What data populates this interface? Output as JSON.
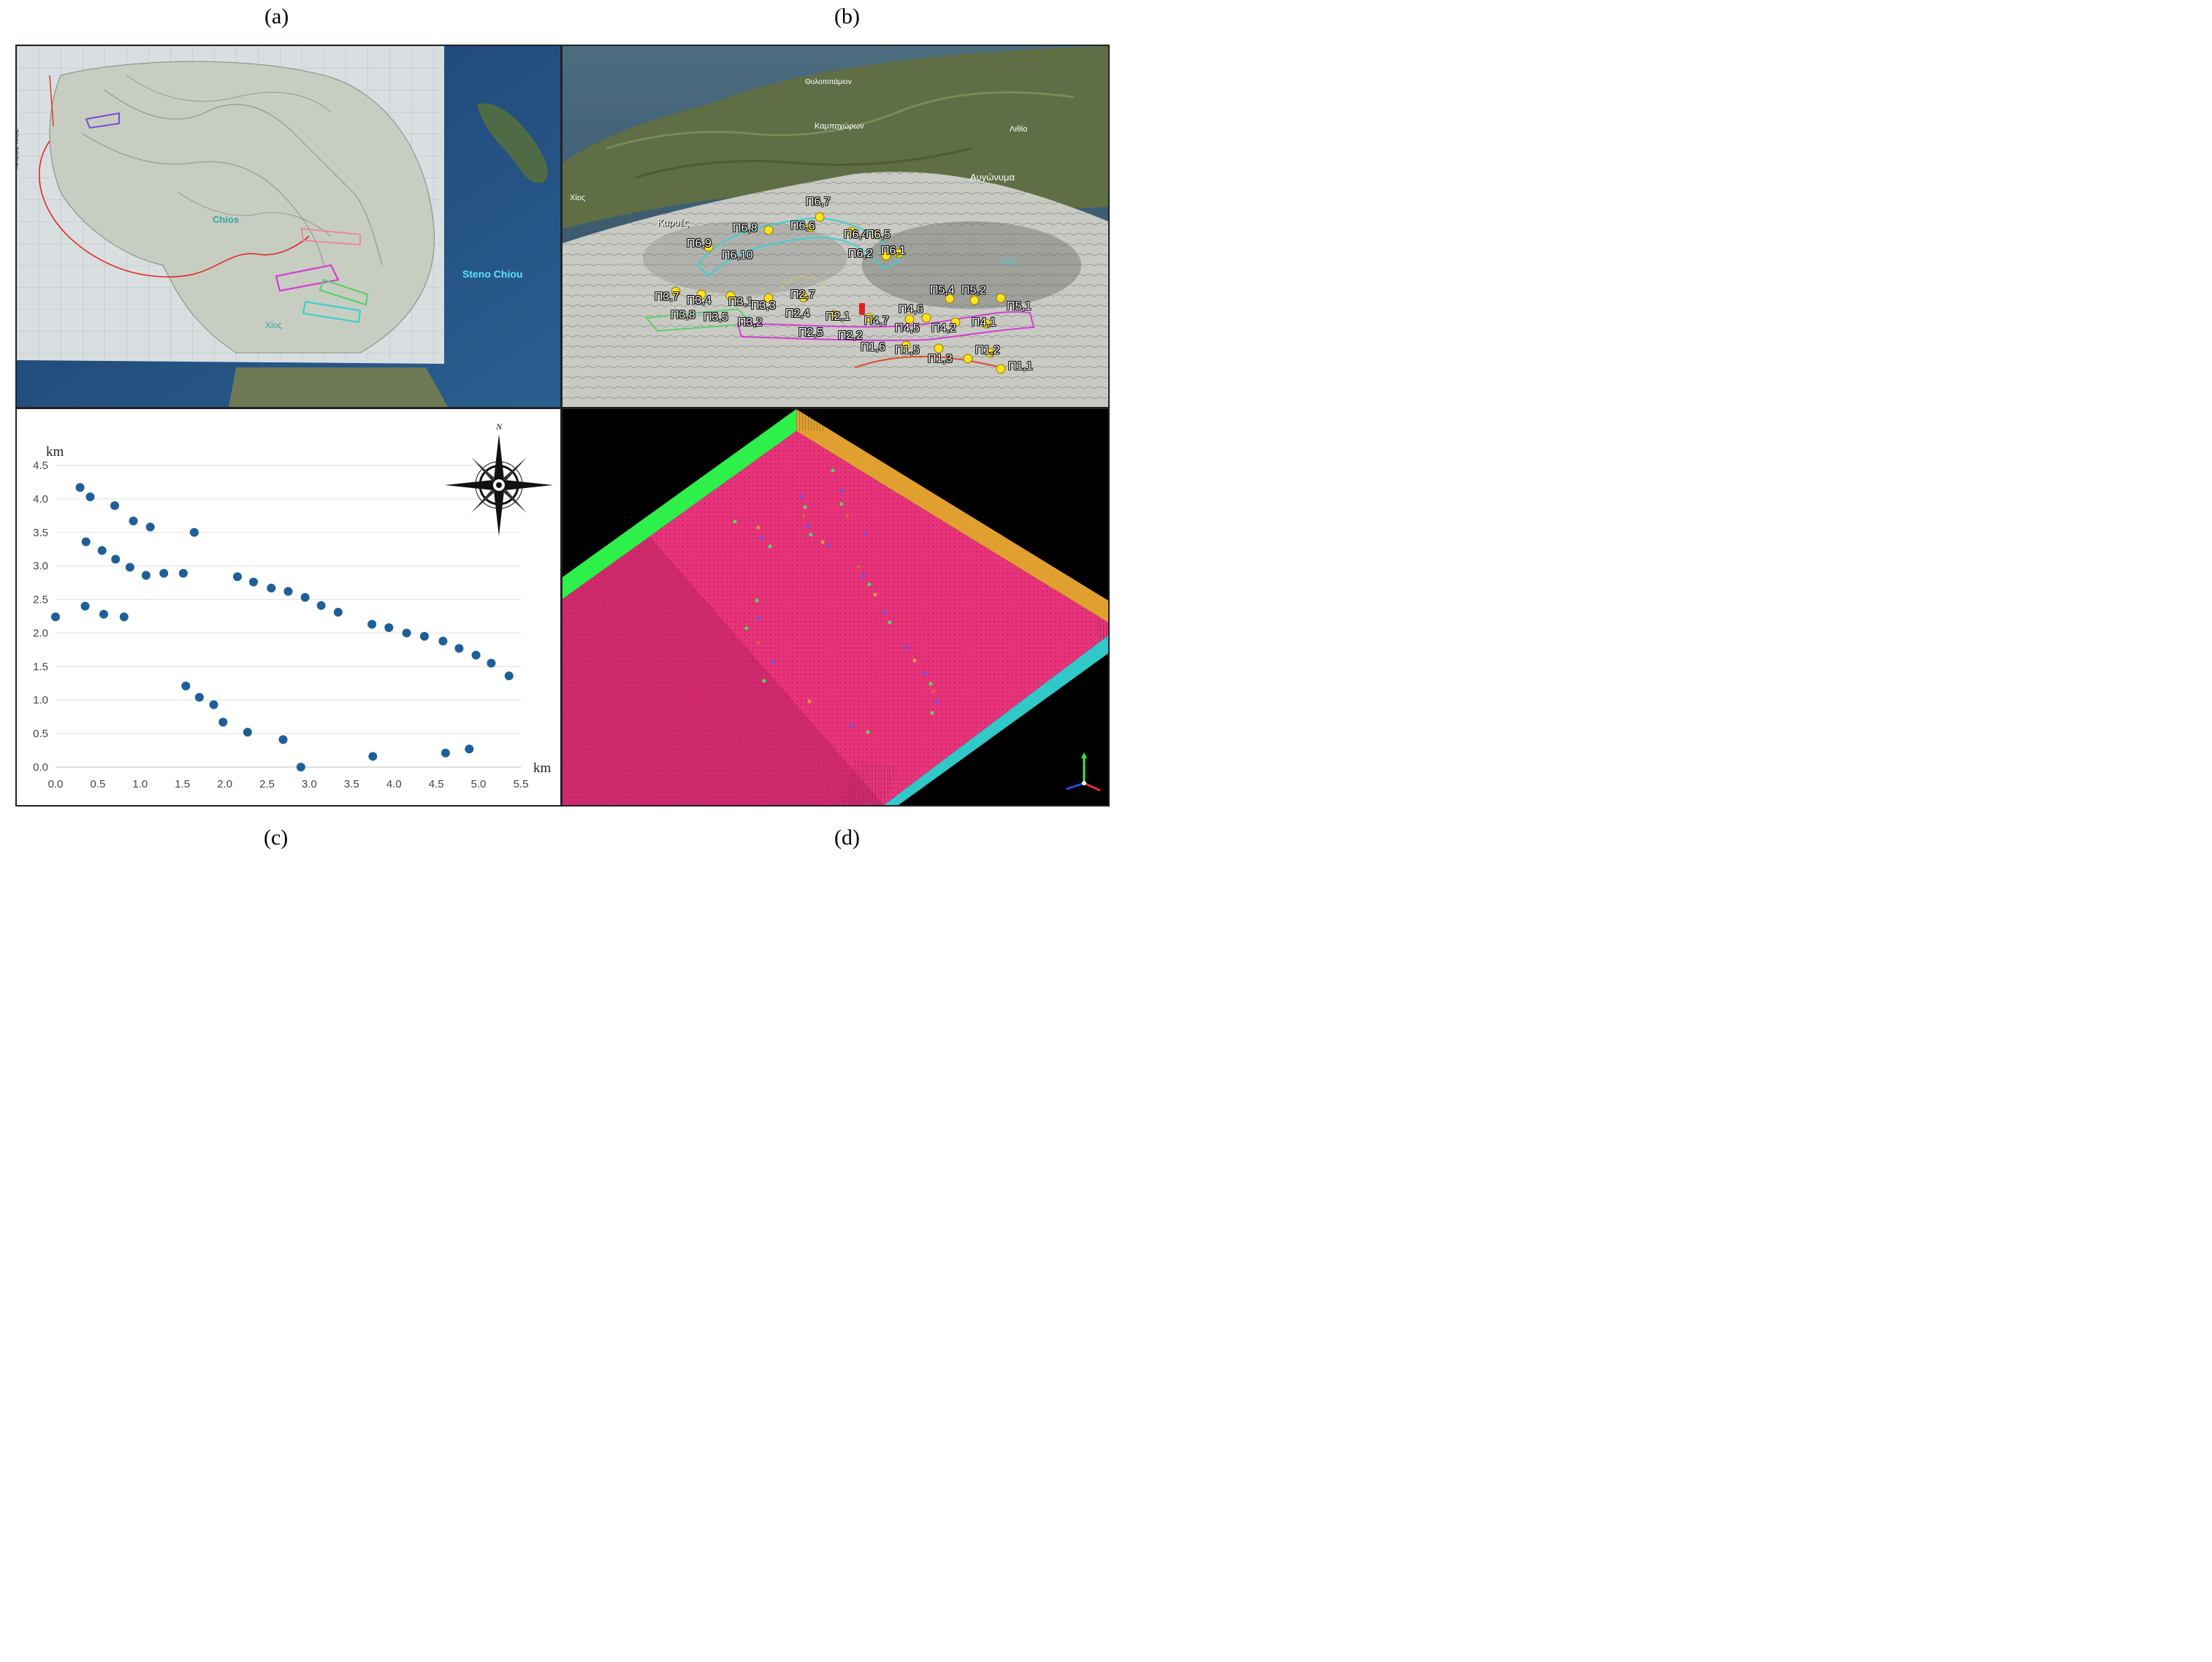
{
  "labels": {
    "a": "(a)",
    "b": "(b)",
    "c": "(c)",
    "d": "(d)"
  },
  "panel_a": {
    "place_chios": "Chios",
    "place_xios": "Χίος",
    "strait": "Steno Chiou",
    "colors": {
      "sea": "#1f4a7a",
      "route": "#e02a2a",
      "magenta": "#d63cd6",
      "green": "#5ad06a",
      "cyan": "#3cd0d0",
      "purple": "#7a4ad6"
    }
  },
  "panel_b": {
    "places": {
      "thol": "Θολοποτάμιον",
      "kamp": "Καμποχώρων",
      "lithi": "Λιθίο",
      "avg": "Αυγώνυμα",
      "xios_left": "Χίος",
      "karyes": "Καρυές",
      "xios_right": "Χίος"
    },
    "pins": {
      "p67": "Π6,7",
      "p68": "Π6,8",
      "p66": "Π6,6",
      "p64": "Π6,4",
      "p65": "Π6,5",
      "p69": "Π6,9",
      "p610": "Π6,10",
      "p62": "Π6,2",
      "p61": "Π6,1",
      "p54": "Π5,4",
      "p52": "Π5,2",
      "p51": "Π5,1",
      "p37": "Π3,7",
      "p34": "Π3,4",
      "p31": "Π3,1",
      "p33": "Π3,3",
      "p27": "Π2,7",
      "p38": "Π3,8",
      "p35": "Π3,5",
      "p32": "Π3,2",
      "p24": "Π2,4",
      "p21": "Π2,1",
      "p47": "Π4,7",
      "p46": "Π4,6",
      "p45": "Π4,5",
      "p42": "Π4,2",
      "p41": "Π4,1",
      "p25": "Π2,5",
      "p22": "Π2,2",
      "p16": "Π1,6",
      "p15": "Π1,5",
      "p13": "Π1,3",
      "p12": "Π1,2",
      "p11": "Π1,1"
    }
  },
  "chart_data": {
    "type": "scatter",
    "title": "",
    "xlabel": "km",
    "ylabel": "km",
    "xlim": [
      0,
      5.5
    ],
    "ylim": [
      0,
      4.5
    ],
    "x_ticks": [
      "0.0",
      "0.5",
      "1.0",
      "1.5",
      "2.0",
      "2.5",
      "3.0",
      "3.5",
      "4.0",
      "4.5",
      "5.0",
      "5.5"
    ],
    "y_ticks": [
      "0.0",
      "0.5",
      "1.0",
      "1.5",
      "2.0",
      "2.5",
      "3.0",
      "3.5",
      "4.0",
      "4.5"
    ],
    "grid": true,
    "marker_color": "#1f5f99",
    "compass_label": "N",
    "points": [
      [
        0.29,
        4.17
      ],
      [
        0.41,
        4.03
      ],
      [
        0.7,
        3.9
      ],
      [
        0.92,
        3.67
      ],
      [
        1.12,
        3.58
      ],
      [
        1.64,
        3.5
      ],
      [
        0.36,
        3.36
      ],
      [
        0.55,
        3.23
      ],
      [
        0.71,
        3.1
      ],
      [
        0.88,
        2.98
      ],
      [
        1.07,
        2.86
      ],
      [
        1.28,
        2.89
      ],
      [
        1.51,
        2.89
      ],
      [
        2.15,
        2.84
      ],
      [
        2.34,
        2.76
      ],
      [
        2.55,
        2.67
      ],
      [
        2.75,
        2.62
      ],
      [
        2.95,
        2.53
      ],
      [
        3.14,
        2.41
      ],
      [
        3.34,
        2.31
      ],
      [
        3.74,
        2.13
      ],
      [
        3.94,
        2.08
      ],
      [
        4.15,
        2.0
      ],
      [
        4.36,
        1.95
      ],
      [
        4.58,
        1.88
      ],
      [
        4.77,
        1.77
      ],
      [
        4.97,
        1.67
      ],
      [
        5.15,
        1.55
      ],
      [
        5.36,
        1.36
      ],
      [
        0.0,
        2.24
      ],
      [
        0.35,
        2.4
      ],
      [
        0.57,
        2.28
      ],
      [
        0.81,
        2.24
      ],
      [
        1.54,
        1.21
      ],
      [
        1.7,
        1.04
      ],
      [
        1.87,
        0.93
      ],
      [
        1.98,
        0.67
      ],
      [
        2.27,
        0.52
      ],
      [
        2.69,
        0.41
      ],
      [
        2.9,
        0.0
      ],
      [
        3.75,
        0.16
      ],
      [
        4.61,
        0.21
      ],
      [
        4.89,
        0.27
      ]
    ]
  },
  "panel_d": {
    "colors": {
      "floor": "#e8337a",
      "left_wall": "#2ef04a",
      "back_wall": "#e0a030",
      "front_wall": "#30c8c8",
      "bg": "#000000"
    }
  }
}
